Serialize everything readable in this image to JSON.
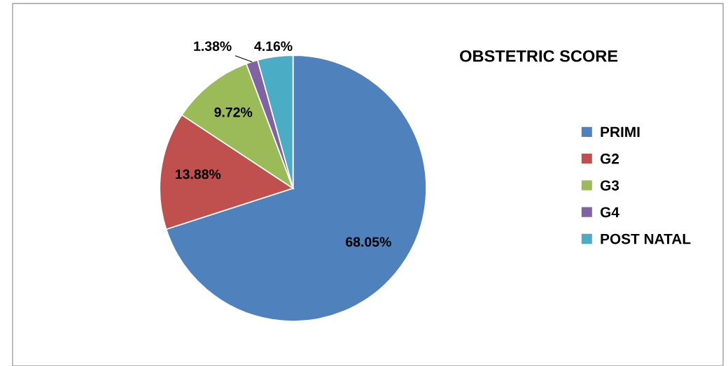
{
  "chart_data": {
    "type": "pie",
    "title": "OBSTETRIC SCORE",
    "categories": [
      "PRIMI",
      "G2",
      "G3",
      "G4",
      "POST NATAL"
    ],
    "values": [
      68.05,
      13.88,
      9.72,
      1.38,
      4.16
    ],
    "value_labels": [
      "68.05%",
      "13.88%",
      "9.72%",
      "1.38%",
      "4.16%"
    ],
    "colors": [
      "#4f81bd",
      "#c0504d",
      "#9bbb59",
      "#8064a2",
      "#4bacc6"
    ],
    "legend": "right"
  }
}
